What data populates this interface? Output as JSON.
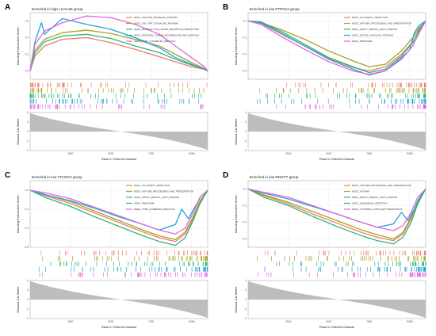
{
  "figure": {
    "y_label_top": "Running Enrichment Score",
    "y_label_bottom": "Ranked List Metric",
    "x_label": "Rank in Ordered Dataset"
  },
  "chart_data": [
    {
      "letter": "A",
      "type": "line",
      "title": "Enriched in high LGALS8 group",
      "xlabel": "Rank in Ordered Dataset",
      "ylabel": "Running Enrichment Score",
      "xlim": [
        0,
        11000
      ],
      "ylim": [
        -0.1,
        0.7
      ],
      "x_ticks": [
        2500,
        5000,
        7500,
        10000
      ],
      "y_ticks": [
        0.0,
        0.2,
        0.4,
        0.6
      ],
      "metric_label": "Ranked List Metric",
      "metric_ylim": [
        -4,
        4
      ],
      "metric_ticks": [
        4,
        2,
        0,
        -2,
        -4
      ],
      "legend_position": "top-right",
      "series": [
        {
          "name": "KEGG_CALCIUM_SIGNALING_PATHWAY",
          "color": "#f07a6a",
          "x": [
            0,
            300,
            900,
            2000,
            3500,
            5000,
            6500,
            8000,
            9000,
            10000,
            10800,
            11000
          ],
          "y": [
            0,
            0.18,
            0.3,
            0.38,
            0.4,
            0.34,
            0.26,
            0.17,
            0.11,
            0.05,
            0.02,
            0
          ]
        },
        {
          "name": "KEGG_JAK_STAT_SIGNALING_PATHWAY",
          "color": "#a8a21e",
          "x": [
            0,
            300,
            900,
            2000,
            3500,
            5000,
            6500,
            8000,
            9000,
            10000,
            10800,
            11000
          ],
          "y": [
            0,
            0.25,
            0.38,
            0.46,
            0.49,
            0.45,
            0.38,
            0.3,
            0.2,
            0.1,
            0.03,
            0
          ]
        },
        {
          "name": "KEGG_NEUROACTIVE_LIGAND_RECEPTOR_INTERACTION",
          "color": "#2fb57a",
          "x": [
            0,
            300,
            900,
            2000,
            3500,
            5000,
            6500,
            8000,
            9000,
            10000,
            10800,
            11000
          ],
          "y": [
            0,
            0.22,
            0.35,
            0.42,
            0.44,
            0.39,
            0.3,
            0.22,
            0.14,
            0.07,
            0.02,
            0
          ]
        },
        {
          "name": "KEGG_PROXIMAL_TUBULE_BICARBONATE_RECLAMATION",
          "color": "#22a5d6",
          "x": [
            0,
            300,
            700,
            900,
            2000,
            3500,
            5000,
            6500,
            8000,
            9000,
            10000,
            10800,
            11000
          ],
          "y": [
            0,
            0.35,
            0.58,
            0.44,
            0.63,
            0.56,
            0.5,
            0.4,
            0.28,
            0.16,
            0.08,
            0.02,
            0
          ]
        },
        {
          "name": "KEGG_TYPE_II_DIABETES_MELLITUS",
          "color": "#e065e0",
          "x": [
            0,
            300,
            900,
            2000,
            3500,
            5000,
            6500,
            8000,
            9000,
            10000,
            10800,
            11000
          ],
          "y": [
            0,
            0.32,
            0.48,
            0.58,
            0.66,
            0.64,
            0.56,
            0.44,
            0.3,
            0.16,
            0.05,
            0
          ]
        }
      ]
    },
    {
      "letter": "B",
      "type": "line",
      "title": "Enriched in low PTPN12 group",
      "xlabel": "Rank in Ordered Dataset",
      "ylabel": "Running Enrichment Score",
      "xlim": [
        0,
        11000
      ],
      "ylim": [
        -0.7,
        0.1
      ],
      "x_ticks": [
        2500,
        5000,
        7500,
        10000
      ],
      "y_ticks": [
        0.0,
        -0.2,
        -0.4,
        -0.6
      ],
      "metric_label": "Ranked List Metric",
      "metric_ylim": [
        -4,
        4
      ],
      "metric_ticks": [
        4,
        2,
        0,
        -2,
        -4
      ],
      "legend_position": "top-right",
      "series": [
        {
          "name": "KEGG_ALLOGRAFT_REJECTION",
          "color": "#f07a6a",
          "x": [
            0,
            800,
            2000,
            3500,
            5000,
            6500,
            7500,
            8500,
            9500,
            10200,
            10600,
            11000
          ],
          "y": [
            0,
            -0.03,
            -0.15,
            -0.3,
            -0.45,
            -0.56,
            -0.6,
            -0.55,
            -0.4,
            -0.25,
            -0.12,
            0
          ]
        },
        {
          "name": "KEGG_ANTIGEN_PROCESSING_AND_PRESENTATION",
          "color": "#a8a21e",
          "x": [
            0,
            800,
            2000,
            3500,
            5000,
            6500,
            7500,
            8500,
            9500,
            10200,
            10600,
            11000
          ],
          "y": [
            0,
            -0.02,
            -0.1,
            -0.22,
            -0.36,
            -0.48,
            -0.55,
            -0.52,
            -0.36,
            -0.2,
            -0.08,
            0
          ]
        },
        {
          "name": "KEGG_GRAFT_VERSUS_HOST_DISEASE",
          "color": "#2fb57a",
          "x": [
            0,
            800,
            2000,
            3500,
            5000,
            6500,
            7500,
            8500,
            9500,
            10200,
            10600,
            11000
          ],
          "y": [
            0,
            -0.01,
            -0.12,
            -0.28,
            -0.44,
            -0.55,
            -0.62,
            -0.58,
            -0.42,
            -0.26,
            -0.1,
            0
          ]
        },
        {
          "name": "KEGG_NOTCH_SIGNALING_PATHWAY",
          "color": "#22a5d6",
          "x": [
            0,
            800,
            2000,
            3500,
            5000,
            6500,
            7500,
            8500,
            9500,
            10000,
            10300,
            10600,
            11000
          ],
          "y": [
            0,
            -0.02,
            -0.14,
            -0.3,
            -0.46,
            -0.58,
            -0.65,
            -0.6,
            -0.44,
            -0.35,
            -0.14,
            -0.05,
            0
          ]
        },
        {
          "name": "KEGG_RIBOSOME",
          "color": "#e065e0",
          "x": [
            0,
            800,
            2000,
            3500,
            5000,
            6500,
            7500,
            8500,
            9500,
            10200,
            10600,
            11000
          ],
          "y": [
            0,
            -0.04,
            -0.18,
            -0.34,
            -0.49,
            -0.6,
            -0.64,
            -0.6,
            -0.46,
            -0.3,
            -0.14,
            0
          ]
        }
      ]
    },
    {
      "letter": "C",
      "type": "line",
      "title": "Enriched in low YTHDC2 group",
      "xlabel": "Rank in Ordered Dataset",
      "ylabel": "Running Enrichment Score",
      "xlim": [
        0,
        11000
      ],
      "ylim": [
        -0.6,
        0.1
      ],
      "x_ticks": [
        2500,
        5000,
        7500,
        10000
      ],
      "y_ticks": [
        0.0,
        -0.2,
        -0.4,
        -0.6
      ],
      "metric_label": "Ranked List Metric",
      "metric_ylim": [
        -4,
        4
      ],
      "metric_ticks": [
        4,
        2,
        0,
        -2,
        -4
      ],
      "legend_position": "top-right",
      "series": [
        {
          "name": "KEGG_ALLOGRAFT_REJECTION",
          "color": "#f07a6a",
          "x": [
            0,
            1000,
            2500,
            4000,
            5500,
            7000,
            8000,
            9000,
            9600,
            10100,
            10500,
            11000
          ],
          "y": [
            0,
            -0.06,
            -0.14,
            -0.24,
            -0.34,
            -0.44,
            -0.5,
            -0.54,
            -0.46,
            -0.3,
            -0.14,
            0
          ]
        },
        {
          "name": "KEGG_ANTIGEN_PROCESSING_AND_PRESENTATION",
          "color": "#a8a21e",
          "x": [
            0,
            1000,
            2500,
            4000,
            5500,
            7000,
            8000,
            9000,
            9600,
            10100,
            10500,
            11000
          ],
          "y": [
            0,
            -0.05,
            -0.12,
            -0.22,
            -0.32,
            -0.42,
            -0.48,
            -0.52,
            -0.44,
            -0.28,
            -0.12,
            0
          ]
        },
        {
          "name": "KEGG_GRAFT_VERSUS_HOST_DISEASE",
          "color": "#2fb57a",
          "x": [
            0,
            1000,
            2500,
            4000,
            5500,
            7000,
            8000,
            9000,
            9600,
            10100,
            10500,
            11000
          ],
          "y": [
            0,
            -0.08,
            -0.17,
            -0.28,
            -0.38,
            -0.48,
            -0.54,
            -0.58,
            -0.5,
            -0.32,
            -0.15,
            0
          ]
        },
        {
          "name": "KEGG_RIBOSOME",
          "color": "#22a5d6",
          "x": [
            0,
            1000,
            2500,
            4000,
            5500,
            7000,
            8000,
            9000,
            9400,
            9800,
            10200,
            10600,
            11000
          ],
          "y": [
            0,
            -0.05,
            -0.11,
            -0.19,
            -0.28,
            -0.36,
            -0.42,
            -0.36,
            -0.2,
            -0.3,
            -0.18,
            -0.06,
            0
          ]
        },
        {
          "name": "KEGG_TYPE_I_DIABETES_MELLITUS",
          "color": "#e065e0",
          "x": [
            0,
            1000,
            2500,
            4000,
            5500,
            7000,
            8000,
            9000,
            9600,
            10100,
            10500,
            11000
          ],
          "y": [
            0,
            -0.03,
            -0.09,
            -0.18,
            -0.27,
            -0.36,
            -0.42,
            -0.46,
            -0.4,
            -0.24,
            -0.08,
            0
          ]
        }
      ]
    },
    {
      "letter": "D",
      "type": "line",
      "title": "Enriched in low RNGTT group",
      "xlabel": "Rank in Ordered Dataset",
      "ylabel": "Running Enrichment Score",
      "xlim": [
        0,
        11000
      ],
      "ylim": [
        -0.7,
        0.1
      ],
      "x_ticks": [
        2500,
        5000,
        7500,
        10000
      ],
      "y_ticks": [
        0.0,
        -0.2,
        -0.4,
        -0.6
      ],
      "metric_label": "Ranked List Metric",
      "metric_ylim": [
        -4,
        4
      ],
      "metric_ticks": [
        4,
        2,
        0,
        -2,
        -4
      ],
      "legend_position": "top-right",
      "series": [
        {
          "name": "KEGG_ANTIGEN_PROCESSING_AND_PRESENTATION",
          "color": "#f07a6a",
          "x": [
            0,
            1000,
            2500,
            4000,
            5500,
            7000,
            8000,
            9000,
            9600,
            10100,
            10500,
            11000
          ],
          "y": [
            0,
            -0.08,
            -0.18,
            -0.3,
            -0.41,
            -0.52,
            -0.58,
            -0.62,
            -0.54,
            -0.36,
            -0.16,
            0
          ]
        },
        {
          "name": "KEGG_ASTHMA",
          "color": "#a8a21e",
          "x": [
            0,
            1000,
            2500,
            4000,
            5500,
            7000,
            8000,
            9000,
            9600,
            10100,
            10500,
            11000
          ],
          "y": [
            0,
            -0.07,
            -0.16,
            -0.27,
            -0.38,
            -0.49,
            -0.55,
            -0.6,
            -0.52,
            -0.34,
            -0.14,
            0
          ]
        },
        {
          "name": "KEGG_GRAFT_VERSUS_HOST_DISEASE",
          "color": "#2fb57a",
          "x": [
            0,
            1000,
            2500,
            4000,
            5500,
            7000,
            8000,
            9000,
            9600,
            10100,
            10500,
            11000
          ],
          "y": [
            0,
            -0.1,
            -0.2,
            -0.33,
            -0.45,
            -0.56,
            -0.62,
            -0.66,
            -0.58,
            -0.4,
            -0.18,
            0
          ]
        },
        {
          "name": "KEGG_LEISHMANIA_INFECTION",
          "color": "#22a5d6",
          "x": [
            0,
            1000,
            2500,
            4000,
            5500,
            7000,
            8000,
            9000,
            9500,
            9900,
            10300,
            10700,
            11000
          ],
          "y": [
            0,
            -0.05,
            -0.12,
            -0.21,
            -0.3,
            -0.4,
            -0.46,
            -0.42,
            -0.28,
            -0.38,
            -0.24,
            -0.08,
            0
          ]
        },
        {
          "name": "KEGG_SYSTEMIC_LUPUS_ERYTHEMATOSUS",
          "color": "#e065e0",
          "x": [
            0,
            1000,
            2500,
            4000,
            5500,
            7000,
            8000,
            9000,
            9600,
            10100,
            10500,
            11000
          ],
          "y": [
            0,
            -0.04,
            -0.1,
            -0.2,
            -0.3,
            -0.4,
            -0.46,
            -0.5,
            -0.44,
            -0.28,
            -0.1,
            0
          ]
        }
      ]
    }
  ]
}
